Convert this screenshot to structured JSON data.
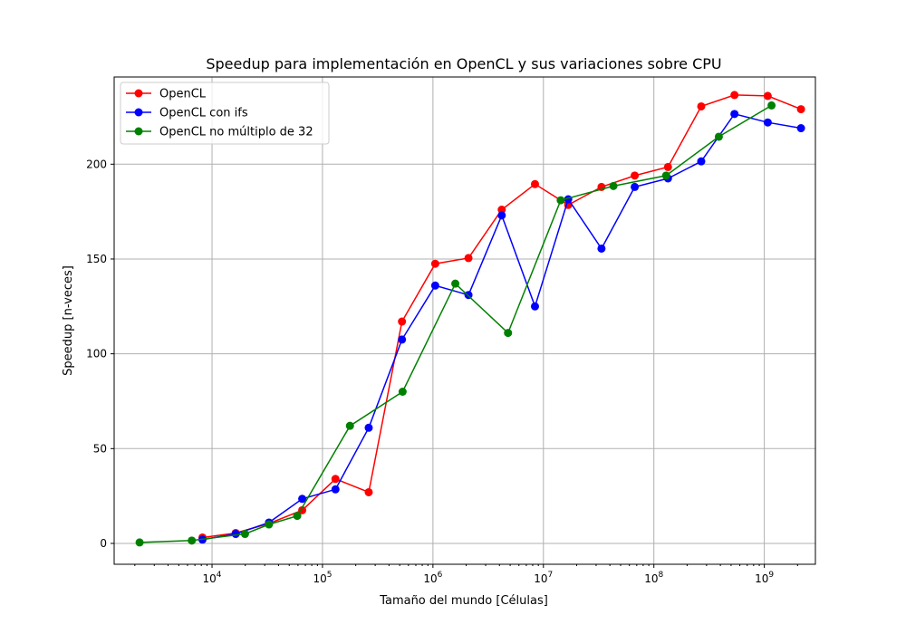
{
  "chart_data": {
    "type": "line",
    "title": "Speedup para implementación en OpenCL y sus variaciones sobre CPU",
    "xlabel": "Tamaño del mundo [Células]",
    "ylabel": "Speedup [n-veces]",
    "xscale": "log",
    "xlim": [
      1300,
      2900000000
    ],
    "ylim": [
      -11,
      246
    ],
    "xticks": [
      {
        "value": 10000,
        "base": "10",
        "exp": "4"
      },
      {
        "value": 100000,
        "base": "10",
        "exp": "5"
      },
      {
        "value": 1000000,
        "base": "10",
        "exp": "6"
      },
      {
        "value": 10000000,
        "base": "10",
        "exp": "7"
      },
      {
        "value": 100000000,
        "base": "10",
        "exp": "8"
      },
      {
        "value": 1000000000,
        "base": "10",
        "exp": "9"
      }
    ],
    "yticks": [
      0,
      50,
      100,
      150,
      200
    ],
    "grid": true,
    "legend": "top-left",
    "colors": {
      "grid": "#b0b0b0",
      "axis": "#000000"
    },
    "series": [
      {
        "name": "OpenCL",
        "color": "#ff0000",
        "x": [
          8192,
          16384,
          32768,
          65536,
          131072,
          262144,
          524288,
          1048576,
          2097152,
          4194304,
          8388608,
          16777216,
          33554432,
          67108864,
          134217728,
          268435456,
          536870912,
          1073741824,
          2147483648
        ],
        "y": [
          3.1,
          5.5,
          10.5,
          17.5,
          34,
          27,
          117,
          147.5,
          150.5,
          176,
          189.5,
          178.5,
          188,
          194,
          198.5,
          230.5,
          236.5,
          236,
          229
        ]
      },
      {
        "name": "OpenCL con ifs",
        "color": "#0000ff",
        "x": [
          8192,
          16384,
          32768,
          65536,
          131072,
          262144,
          524288,
          1048576,
          2097152,
          4194304,
          8388608,
          16777216,
          33554432,
          67108864,
          134217728,
          268435456,
          536870912,
          1073741824,
          2147483648
        ],
        "y": [
          2,
          5,
          11,
          23.5,
          28.5,
          61,
          107.5,
          136,
          131,
          173,
          125,
          181.5,
          155.5,
          188,
          192.5,
          201.5,
          226.5,
          222,
          219
        ]
      },
      {
        "name": "OpenCL no múltiplo de 32",
        "color": "#008000",
        "x": [
          2209,
          6561,
          19881,
          32761,
          59049,
          177241,
          531441,
          1594323,
          4782969,
          14348907,
          43046721,
          129140163,
          387420489,
          1162261467
        ],
        "y": [
          0.5,
          1.5,
          5,
          10,
          14.5,
          62,
          80,
          137,
          111,
          181,
          188.5,
          194,
          214.5,
          231
        ]
      }
    ]
  }
}
